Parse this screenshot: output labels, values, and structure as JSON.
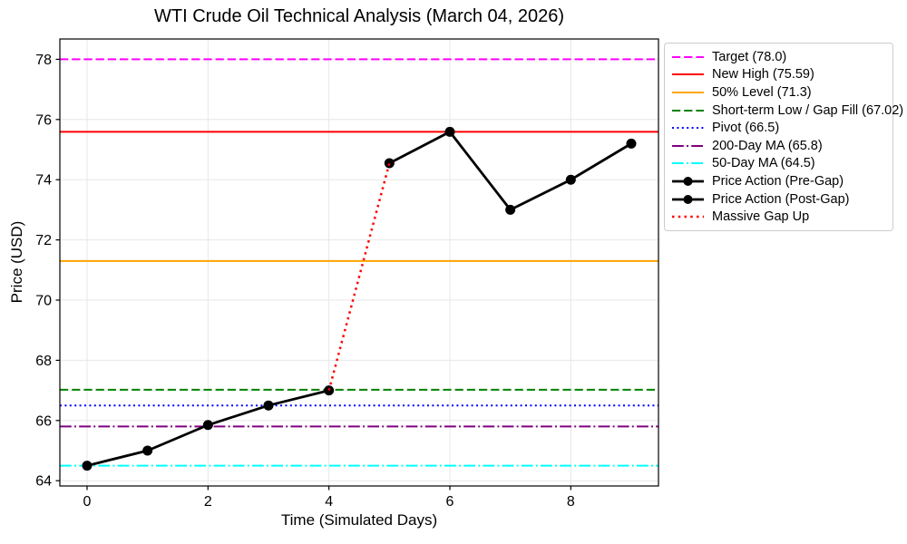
{
  "chart_data": {
    "type": "line",
    "title": "WTI Crude Oil Technical Analysis (March 04, 2026)",
    "xlabel": "Time (Simulated Days)",
    "ylabel": "Price (USD)",
    "xlim": [
      -0.45,
      9.45
    ],
    "ylim": [
      63.825,
      78.675
    ],
    "xticks": [
      0,
      2,
      4,
      6,
      8
    ],
    "yticks": [
      64,
      66,
      68,
      70,
      72,
      74,
      76,
      78
    ],
    "grid": true,
    "grid_color": "#e7e7e7",
    "background": "#ffffff",
    "legend_position": "outside-upper-right",
    "hlines": [
      {
        "label": "Target (78.0)",
        "value": 78.0,
        "color": "#ff00ff",
        "style": "dashed",
        "width": 2
      },
      {
        "label": "New High (75.59)",
        "value": 75.59,
        "color": "#ff0000",
        "style": "solid",
        "width": 2
      },
      {
        "label": "50% Level (71.3)",
        "value": 71.3,
        "color": "#ffa500",
        "style": "solid",
        "width": 2
      },
      {
        "label": "Short-term Low / Gap Fill (67.02)",
        "value": 67.02,
        "color": "#008000",
        "style": "dashed",
        "width": 2
      },
      {
        "label": "Pivot (66.5)",
        "value": 66.5,
        "color": "#0000ff",
        "style": "dotted",
        "width": 2
      },
      {
        "label": "200-Day MA (65.8)",
        "value": 65.8,
        "color": "#800080",
        "style": "dashdot",
        "width": 2
      },
      {
        "label": "50-Day MA (64.5)",
        "value": 64.5,
        "color": "#00ffff",
        "style": "dashdot",
        "width": 2
      }
    ],
    "series": [
      {
        "name": "Price Action (Pre-Gap)",
        "x": [
          0,
          1,
          2,
          3,
          4
        ],
        "values": [
          64.5,
          65.0,
          65.85,
          66.5,
          67.0
        ],
        "color": "#000000",
        "style": "solid",
        "width": 2.8,
        "marker": "circle"
      },
      {
        "name": "Price Action (Post-Gap)",
        "x": [
          5,
          6,
          7,
          8,
          9
        ],
        "values": [
          74.55,
          75.59,
          73.0,
          74.0,
          75.2
        ],
        "color": "#000000",
        "style": "solid",
        "width": 2.8,
        "marker": "circle"
      },
      {
        "name": "Massive Gap Up",
        "x": [
          4,
          5
        ],
        "values": [
          67.0,
          74.55
        ],
        "color": "#ff0000",
        "style": "dotted",
        "width": 2.5,
        "marker": "none"
      }
    ]
  }
}
